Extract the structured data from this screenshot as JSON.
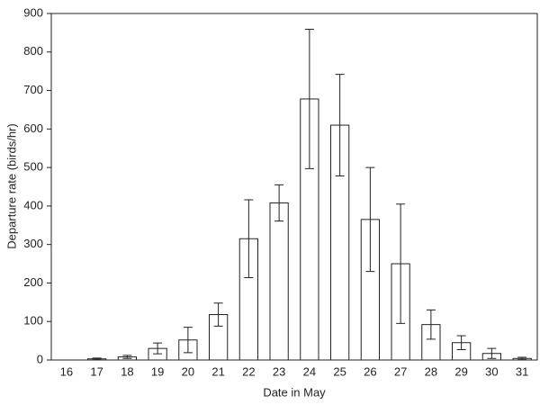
{
  "chart_data": {
    "type": "bar",
    "x_label": "Date in May",
    "y_label": "Departure rate (birds/hr)",
    "categories": [
      "16",
      "17",
      "18",
      "19",
      "20",
      "21",
      "22",
      "23",
      "24",
      "25",
      "26",
      "27",
      "28",
      "29",
      "30",
      "31"
    ],
    "values": [
      0,
      3,
      8,
      30,
      52,
      118,
      315,
      408,
      678,
      610,
      365,
      250,
      92,
      45,
      17,
      4
    ],
    "errors": [
      0,
      2,
      4,
      14,
      33,
      30,
      101,
      47,
      181,
      132,
      135,
      155,
      38,
      18,
      13,
      3
    ],
    "color": "#ffffff",
    "ylim": [
      0,
      900
    ],
    "yticks": [
      0,
      100,
      200,
      300,
      400,
      500,
      600,
      700,
      800,
      900
    ],
    "grid": false
  }
}
